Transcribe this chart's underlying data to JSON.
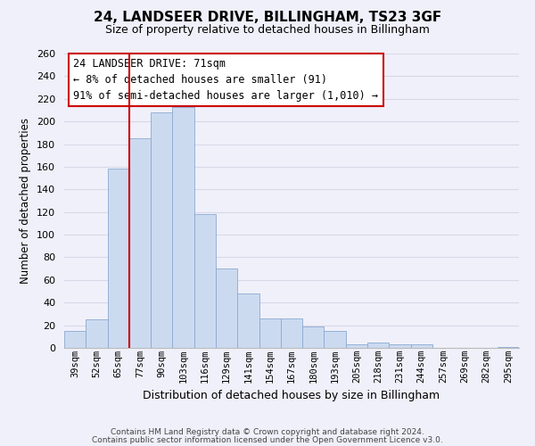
{
  "title": "24, LANDSEER DRIVE, BILLINGHAM, TS23 3GF",
  "subtitle": "Size of property relative to detached houses in Billingham",
  "xlabel": "Distribution of detached houses by size in Billingham",
  "ylabel": "Number of detached properties",
  "categories": [
    "39sqm",
    "52sqm",
    "65sqm",
    "77sqm",
    "90sqm",
    "103sqm",
    "116sqm",
    "129sqm",
    "141sqm",
    "154sqm",
    "167sqm",
    "180sqm",
    "193sqm",
    "205sqm",
    "218sqm",
    "231sqm",
    "244sqm",
    "257sqm",
    "269sqm",
    "282sqm",
    "295sqm"
  ],
  "values": [
    15,
    25,
    158,
    185,
    208,
    213,
    118,
    70,
    48,
    26,
    26,
    19,
    15,
    3,
    5,
    3,
    3,
    0,
    0,
    0,
    1
  ],
  "bar_color": "#ccdaf0",
  "bar_edge_color": "#8aaad0",
  "grid_color": "#d8d8e8",
  "vline_x_index": 2.5,
  "vline_color": "#cc0000",
  "annotation_title": "24 LANDSEER DRIVE: 71sqm",
  "annotation_line1": "← 8% of detached houses are smaller (91)",
  "annotation_line2": "91% of semi-detached houses are larger (1,010) →",
  "annotation_box_color": "#ffffff",
  "annotation_box_edge": "#cc0000",
  "ylim": [
    0,
    260
  ],
  "yticks": [
    0,
    20,
    40,
    60,
    80,
    100,
    120,
    140,
    160,
    180,
    200,
    220,
    240,
    260
  ],
  "footnote1": "Contains HM Land Registry data © Crown copyright and database right 2024.",
  "footnote2": "Contains public sector information licensed under the Open Government Licence v3.0.",
  "bg_color": "#f0f0fa"
}
